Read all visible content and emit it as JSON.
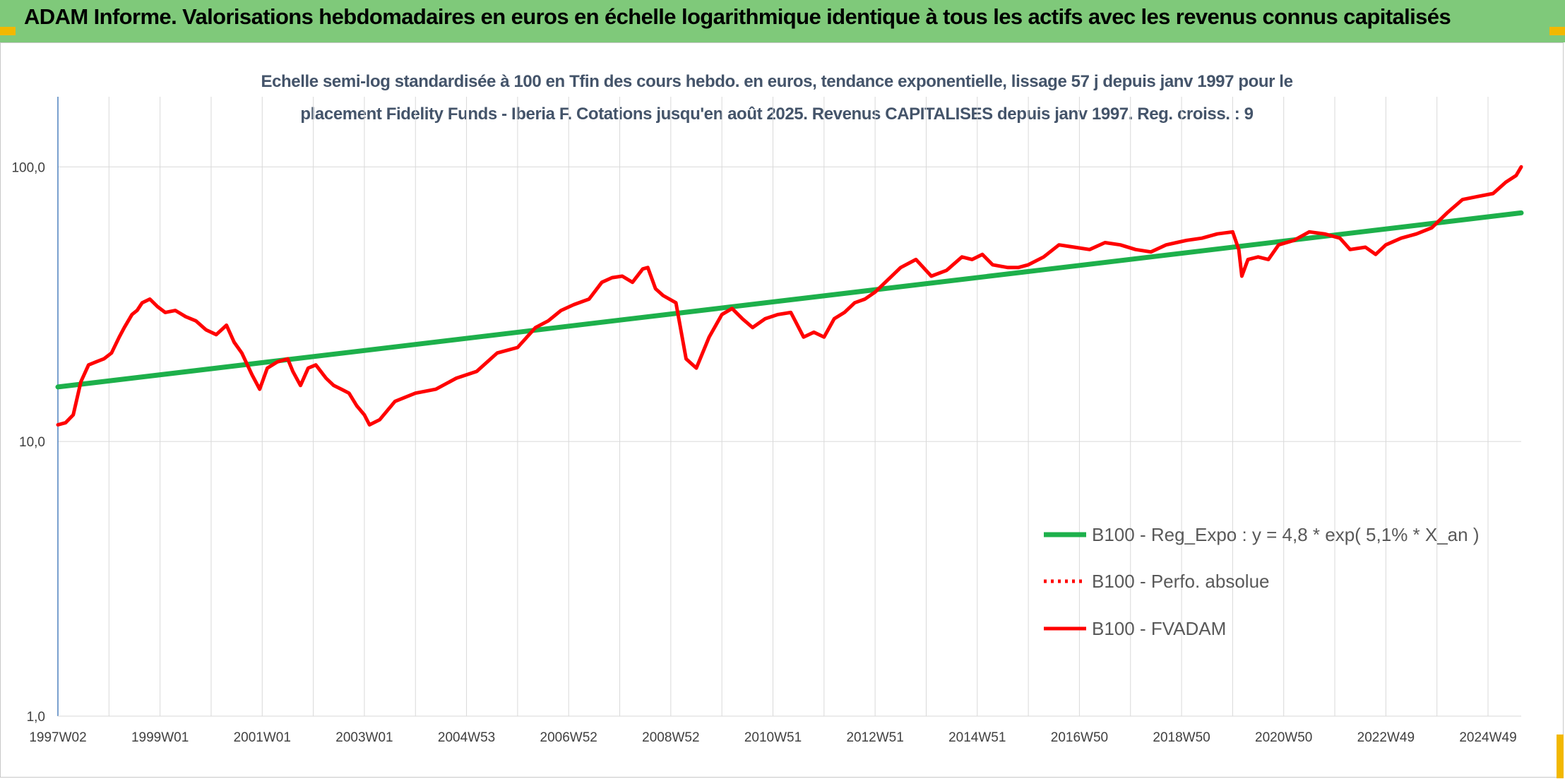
{
  "header": {
    "title": "ADAM Informe. Valorisations hebdomadaires en euros en échelle logarithmique identique à tous les actifs avec les revenus connus capitalisés"
  },
  "colors": {
    "banner": "#7fc97a",
    "accent": "#f2b800",
    "trend": "#1db04b",
    "series": "#ff0000",
    "title": "#44546a"
  },
  "chart_data": {
    "type": "line",
    "title_lines": [
      "Echelle semi-log standardisée à 100 en Tfin des cours hebdo. en euros, tendance exponentielle, lissage 57 j depuis janv 1997 pour le",
      "placement Fidelity Funds - Iberia F. Cotations jusqu'en août 2025. Revenus CAPITALISES depuis janv 1997. Reg. croiss. : 9"
    ],
    "y_scale": "log",
    "ylim": [
      1,
      180
    ],
    "xlim": [
      1997.0,
      2025.65
    ],
    "grid": true,
    "legend_position": "right",
    "y_ticks": [
      {
        "value": 1,
        "label": "1,0"
      },
      {
        "value": 10,
        "label": "10,0"
      },
      {
        "value": 100,
        "label": "100,0"
      }
    ],
    "x_ticks": [
      {
        "value": 1997.0,
        "label": "1997W02"
      },
      {
        "value": 1999.0,
        "label": "1999W01"
      },
      {
        "value": 2001.0,
        "label": "2001W01"
      },
      {
        "value": 2003.0,
        "label": "2003W01"
      },
      {
        "value": 2005.0,
        "label": "2004W53"
      },
      {
        "value": 2007.0,
        "label": "2006W52"
      },
      {
        "value": 2009.0,
        "label": "2008W52"
      },
      {
        "value": 2011.0,
        "label": "2010W51"
      },
      {
        "value": 2013.0,
        "label": "2012W51"
      },
      {
        "value": 2015.0,
        "label": "2014W51"
      },
      {
        "value": 2017.0,
        "label": "2016W50"
      },
      {
        "value": 2019.0,
        "label": "2018W50"
      },
      {
        "value": 2021.0,
        "label": "2020W50"
      },
      {
        "value": 2023.0,
        "label": "2022W49"
      },
      {
        "value": 2025.0,
        "label": "2024W49"
      }
    ],
    "minor_grid_x": [
      1998.0,
      2000.0,
      2002.0,
      2004.0,
      2006.0,
      2008.0,
      2010.0,
      2012.0,
      2014.0,
      2016.0,
      2018.0,
      2020.0,
      2022.0,
      2024.0
    ],
    "series": [
      {
        "name": "B100 - Reg_Expo : y = 4,8 * exp( 5,1% *  X_an )",
        "color": "#1db04b",
        "style": "solid",
        "x": [
          1997.0,
          2025.65
        ],
        "y": [
          15.8,
          68.0
        ]
      },
      {
        "name": "B100 - Perfo. absolue",
        "color": "#ff0000",
        "style": "dotted",
        "x": [],
        "y": []
      },
      {
        "name": "B100 - FVADAM",
        "color": "#ff0000",
        "style": "solid",
        "x": [
          1997.0,
          1997.15,
          1997.3,
          1997.45,
          1997.6,
          1997.75,
          1997.9,
          1998.05,
          1998.2,
          1998.3,
          1998.45,
          1998.55,
          1998.65,
          1998.8,
          1998.95,
          1999.1,
          1999.3,
          1999.5,
          1999.7,
          1999.9,
          2000.1,
          2000.3,
          2000.45,
          2000.6,
          2000.8,
          2000.95,
          2001.1,
          2001.3,
          2001.5,
          2001.6,
          2001.75,
          2001.9,
          2002.05,
          2002.25,
          2002.4,
          2002.55,
          2002.7,
          2002.85,
          2003.0,
          2003.1,
          2003.3,
          2003.6,
          2004.0,
          2004.4,
          2004.8,
          2005.2,
          2005.6,
          2006.0,
          2006.35,
          2006.6,
          2006.85,
          2007.1,
          2007.4,
          2007.65,
          2007.85,
          2008.05,
          2008.25,
          2008.45,
          2008.55,
          2008.7,
          2008.85,
          2009.1,
          2009.3,
          2009.5,
          2009.75,
          2010.0,
          2010.2,
          2010.4,
          2010.6,
          2010.85,
          2011.1,
          2011.35,
          2011.6,
          2011.8,
          2012.0,
          2012.2,
          2012.4,
          2012.6,
          2012.8,
          2013.0,
          2013.2,
          2013.5,
          2013.8,
          2014.1,
          2014.4,
          2014.7,
          2014.9,
          2015.1,
          2015.3,
          2015.6,
          2015.8,
          2016.0,
          2016.3,
          2016.6,
          2016.9,
          2017.2,
          2017.5,
          2017.8,
          2018.1,
          2018.4,
          2018.7,
          2018.9,
          2019.1,
          2019.4,
          2019.7,
          2020.0,
          2020.12,
          2020.18,
          2020.3,
          2020.5,
          2020.7,
          2020.9,
          2021.2,
          2021.5,
          2021.8,
          2022.1,
          2022.3,
          2022.6,
          2022.8,
          2023.0,
          2023.3,
          2023.6,
          2023.9,
          2024.2,
          2024.5,
          2024.8,
          2025.1,
          2025.35,
          2025.55,
          2025.65
        ],
        "y": [
          11.5,
          11.7,
          12.5,
          16.5,
          19.0,
          19.5,
          20.0,
          21.0,
          24.0,
          26.0,
          29.0,
          30.0,
          32.0,
          33.0,
          31.0,
          29.5,
          30.0,
          28.5,
          27.5,
          25.5,
          24.5,
          26.5,
          23.0,
          21.0,
          17.5,
          15.5,
          18.5,
          19.5,
          20.0,
          18.0,
          16.0,
          18.5,
          19.0,
          17.0,
          16.0,
          15.5,
          15.0,
          13.5,
          12.5,
          11.5,
          12.0,
          14.0,
          15.0,
          15.5,
          17.0,
          18.0,
          21.0,
          22.0,
          26.0,
          27.5,
          30.0,
          31.5,
          33.0,
          38.0,
          39.5,
          40.0,
          38.0,
          42.5,
          43.0,
          36.0,
          34.0,
          32.0,
          20.0,
          18.5,
          24.0,
          29.0,
          30.5,
          28.0,
          26.0,
          28.0,
          29.0,
          29.5,
          24.0,
          25.0,
          24.0,
          28.0,
          29.5,
          32.0,
          33.0,
          35.0,
          38.0,
          43.0,
          46.0,
          40.0,
          42.0,
          47.0,
          46.0,
          48.0,
          44.0,
          43.0,
          43.0,
          44.0,
          47.0,
          52.0,
          51.0,
          50.0,
          53.0,
          52.0,
          50.0,
          49.0,
          52.0,
          53.0,
          54.0,
          55.0,
          57.0,
          58.0,
          50.0,
          40.0,
          46.0,
          47.0,
          46.0,
          52.0,
          54.0,
          58.0,
          57.0,
          55.0,
          50.0,
          51.0,
          48.0,
          52.0,
          55.0,
          57.0,
          60.0,
          68.0,
          76.0,
          78.0,
          80.0,
          88.0,
          93.0,
          100.0
        ]
      }
    ]
  }
}
